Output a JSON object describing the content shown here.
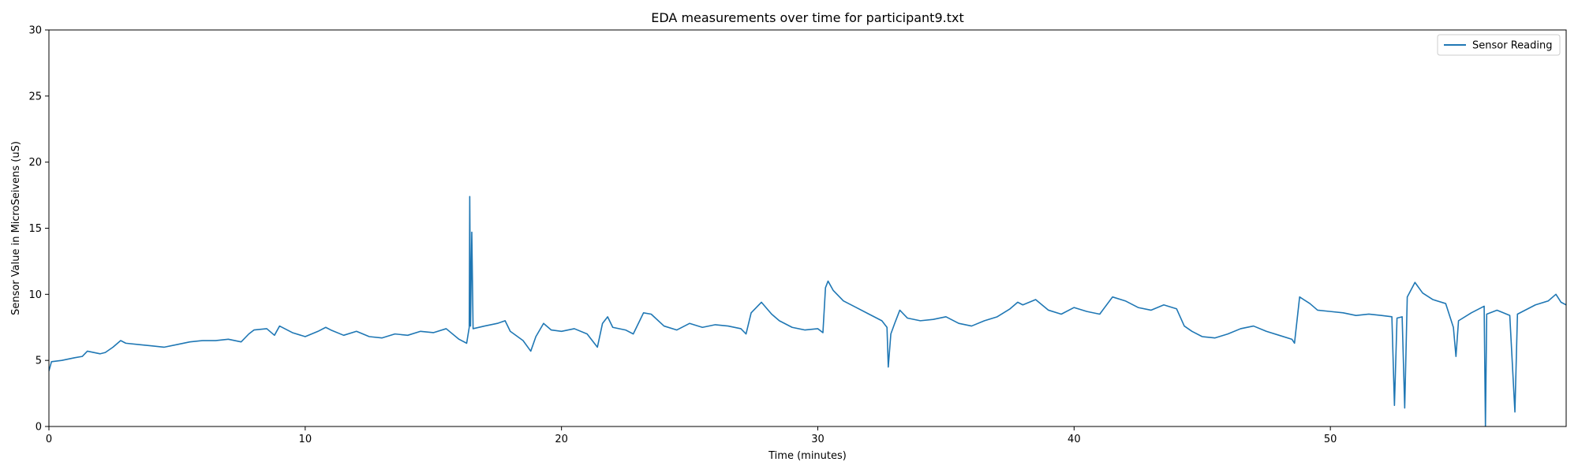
{
  "chart_data": {
    "type": "line",
    "title": "EDA measurements over time for participant9.txt",
    "xlabel": "Time (minutes)",
    "ylabel": "Sensor Value in MicroSeivens (uS)",
    "xlim": [
      0,
      59.2
    ],
    "ylim": [
      0,
      30
    ],
    "x_ticks": [
      0,
      10,
      20,
      30,
      40,
      50
    ],
    "y_ticks": [
      0,
      5,
      10,
      15,
      20,
      25,
      30
    ],
    "grid": false,
    "legend": {
      "position": "top-right",
      "entries": [
        "Sensor Reading"
      ]
    },
    "series": [
      {
        "name": "Sensor Reading",
        "color": "#1f77b4",
        "points": [
          [
            0,
            4.2
          ],
          [
            0.1,
            4.9
          ],
          [
            0.5,
            5.0
          ],
          [
            1.0,
            5.2
          ],
          [
            1.3,
            5.3
          ],
          [
            1.5,
            5.7
          ],
          [
            2.0,
            5.5
          ],
          [
            2.2,
            5.6
          ],
          [
            2.5,
            6.0
          ],
          [
            2.8,
            6.5
          ],
          [
            3.0,
            6.3
          ],
          [
            3.5,
            6.2
          ],
          [
            4.0,
            6.1
          ],
          [
            4.5,
            6.0
          ],
          [
            5.0,
            6.2
          ],
          [
            5.5,
            6.4
          ],
          [
            6.0,
            6.5
          ],
          [
            6.5,
            6.5
          ],
          [
            7.0,
            6.6
          ],
          [
            7.5,
            6.4
          ],
          [
            7.8,
            7.0
          ],
          [
            8.0,
            7.3
          ],
          [
            8.5,
            7.4
          ],
          [
            8.8,
            6.9
          ],
          [
            9.0,
            7.6
          ],
          [
            9.5,
            7.1
          ],
          [
            10.0,
            6.8
          ],
          [
            10.5,
            7.2
          ],
          [
            10.8,
            7.5
          ],
          [
            11.0,
            7.3
          ],
          [
            11.5,
            6.9
          ],
          [
            12.0,
            7.2
          ],
          [
            12.5,
            6.8
          ],
          [
            13.0,
            6.7
          ],
          [
            13.5,
            7.0
          ],
          [
            14.0,
            6.9
          ],
          [
            14.5,
            7.2
          ],
          [
            15.0,
            7.1
          ],
          [
            15.5,
            7.4
          ],
          [
            16.0,
            6.6
          ],
          [
            16.3,
            6.3
          ],
          [
            16.4,
            7.5
          ],
          [
            16.42,
            17.4
          ],
          [
            16.45,
            7.6
          ],
          [
            16.5,
            14.7
          ],
          [
            16.55,
            7.4
          ],
          [
            17.0,
            7.6
          ],
          [
            17.5,
            7.8
          ],
          [
            17.8,
            8.0
          ],
          [
            18.0,
            7.2
          ],
          [
            18.5,
            6.5
          ],
          [
            18.8,
            5.7
          ],
          [
            19.0,
            6.8
          ],
          [
            19.3,
            7.8
          ],
          [
            19.6,
            7.3
          ],
          [
            20.0,
            7.2
          ],
          [
            20.5,
            7.4
          ],
          [
            21.0,
            7.0
          ],
          [
            21.4,
            6.0
          ],
          [
            21.6,
            7.8
          ],
          [
            21.8,
            8.3
          ],
          [
            22.0,
            7.5
          ],
          [
            22.5,
            7.3
          ],
          [
            22.8,
            7.0
          ],
          [
            23.0,
            7.8
          ],
          [
            23.2,
            8.6
          ],
          [
            23.5,
            8.5
          ],
          [
            24.0,
            7.6
          ],
          [
            24.5,
            7.3
          ],
          [
            25.0,
            7.8
          ],
          [
            25.5,
            7.5
          ],
          [
            26.0,
            7.7
          ],
          [
            26.5,
            7.6
          ],
          [
            27.0,
            7.4
          ],
          [
            27.2,
            7.0
          ],
          [
            27.4,
            8.6
          ],
          [
            27.8,
            9.4
          ],
          [
            28.2,
            8.5
          ],
          [
            28.5,
            8.0
          ],
          [
            29.0,
            7.5
          ],
          [
            29.5,
            7.3
          ],
          [
            30.0,
            7.4
          ],
          [
            30.2,
            7.1
          ],
          [
            30.3,
            10.5
          ],
          [
            30.4,
            11.0
          ],
          [
            30.6,
            10.3
          ],
          [
            31.0,
            9.5
          ],
          [
            31.5,
            9.0
          ],
          [
            32.0,
            8.5
          ],
          [
            32.5,
            8.0
          ],
          [
            32.7,
            7.5
          ],
          [
            32.75,
            4.5
          ],
          [
            32.85,
            7.0
          ],
          [
            33.0,
            7.8
          ],
          [
            33.2,
            8.8
          ],
          [
            33.5,
            8.2
          ],
          [
            34.0,
            8.0
          ],
          [
            34.5,
            8.1
          ],
          [
            35.0,
            8.3
          ],
          [
            35.5,
            7.8
          ],
          [
            36.0,
            7.6
          ],
          [
            36.5,
            8.0
          ],
          [
            37.0,
            8.3
          ],
          [
            37.5,
            8.9
          ],
          [
            37.8,
            9.4
          ],
          [
            38.0,
            9.2
          ],
          [
            38.5,
            9.6
          ],
          [
            39.0,
            8.8
          ],
          [
            39.5,
            8.5
          ],
          [
            40.0,
            9.0
          ],
          [
            40.5,
            8.7
          ],
          [
            41.0,
            8.5
          ],
          [
            41.5,
            9.8
          ],
          [
            42.0,
            9.5
          ],
          [
            42.5,
            9.0
          ],
          [
            43.0,
            8.8
          ],
          [
            43.5,
            9.2
          ],
          [
            44.0,
            8.9
          ],
          [
            44.3,
            7.6
          ],
          [
            44.6,
            7.2
          ],
          [
            45.0,
            6.8
          ],
          [
            45.5,
            6.7
          ],
          [
            46.0,
            7.0
          ],
          [
            46.5,
            7.4
          ],
          [
            47.0,
            7.6
          ],
          [
            47.5,
            7.2
          ],
          [
            48.0,
            6.9
          ],
          [
            48.5,
            6.6
          ],
          [
            48.6,
            6.3
          ],
          [
            48.8,
            9.8
          ],
          [
            49.2,
            9.3
          ],
          [
            49.5,
            8.8
          ],
          [
            50.0,
            8.7
          ],
          [
            50.5,
            8.6
          ],
          [
            51.0,
            8.4
          ],
          [
            51.5,
            8.5
          ],
          [
            52.0,
            8.4
          ],
          [
            52.4,
            8.3
          ],
          [
            52.5,
            1.6
          ],
          [
            52.6,
            8.2
          ],
          [
            52.8,
            8.3
          ],
          [
            52.9,
            1.4
          ],
          [
            53.0,
            9.8
          ],
          [
            53.3,
            10.9
          ],
          [
            53.6,
            10.1
          ],
          [
            54.0,
            9.6
          ],
          [
            54.5,
            9.3
          ],
          [
            54.8,
            7.5
          ],
          [
            54.9,
            5.3
          ],
          [
            55.0,
            8.0
          ],
          [
            55.5,
            8.6
          ],
          [
            56.0,
            9.1
          ],
          [
            56.05,
            0
          ],
          [
            56.1,
            8.5
          ],
          [
            56.5,
            8.8
          ],
          [
            57.0,
            8.4
          ],
          [
            57.2,
            1.1
          ],
          [
            57.3,
            8.5
          ],
          [
            57.5,
            8.7
          ],
          [
            58.0,
            9.2
          ],
          [
            58.5,
            9.5
          ],
          [
            58.8,
            10.0
          ],
          [
            59.0,
            9.4
          ],
          [
            59.2,
            9.2
          ]
        ]
      }
    ]
  }
}
